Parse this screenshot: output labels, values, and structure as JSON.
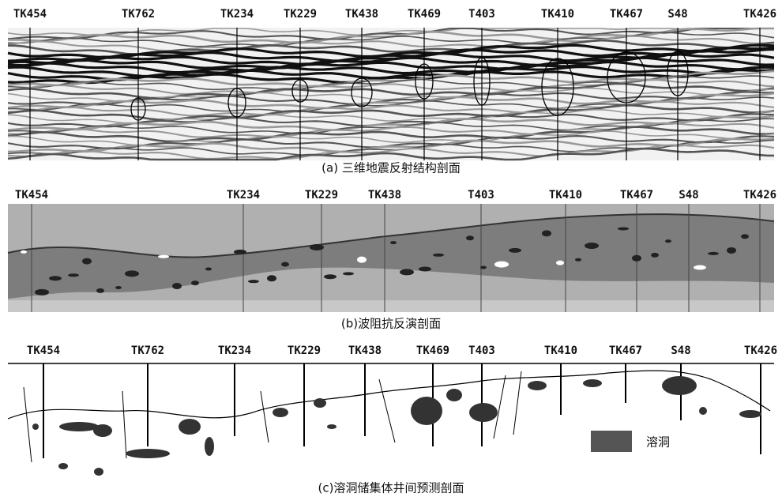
{
  "panel_a": {
    "wells": [
      "TK454",
      "TK762",
      "TK234",
      "TK229",
      "TK438",
      "TK469",
      "T403",
      "TK410",
      "TK467",
      "S48",
      "TK426"
    ],
    "caption": "(a) 三维地震反射结构剖面"
  },
  "panel_b": {
    "wells": [
      "TK454",
      "TK234",
      "TK229",
      "TK438",
      "T403",
      "TK410",
      "TK467",
      "S48",
      "TK426"
    ],
    "caption": "(b)波阻抗反演剖面"
  },
  "panel_c": {
    "wells": [
      "TK454",
      "TK762",
      "TK234",
      "TK229",
      "TK438",
      "TK469",
      "T403",
      "TK410",
      "TK467",
      "S48",
      "TK426"
    ],
    "caption": "(c)溶洞储集体井间预测剖面",
    "legend": "溶洞"
  }
}
